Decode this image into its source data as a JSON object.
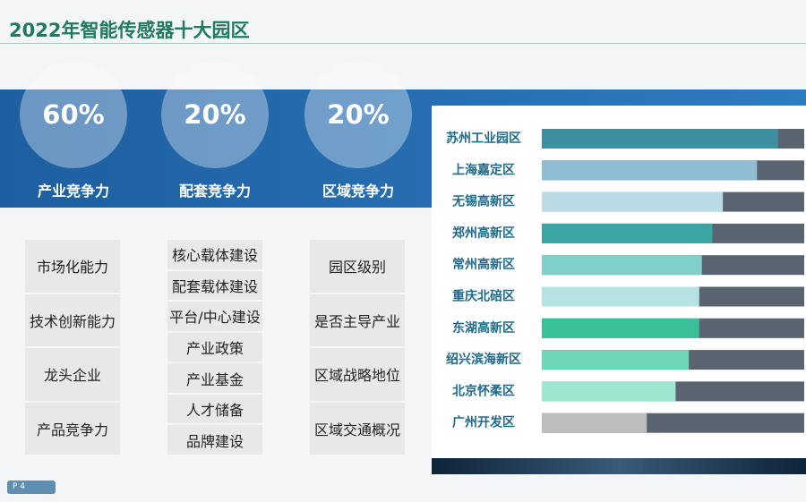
{
  "header": {
    "title": "2022年智能传感器十大园区"
  },
  "pillars": [
    {
      "percent": "60%",
      "label": "产业竞争力",
      "items": [
        "市场化能力",
        "技术创新能力",
        "龙头企业",
        "产品竞争力"
      ]
    },
    {
      "percent": "20%",
      "label": "配套竞争力",
      "items": [
        "核心载体建设",
        "配套载体建设",
        "平台/中心建设",
        "产业政策",
        "产业基金",
        "人才储备",
        "品牌建设"
      ]
    },
    {
      "percent": "20%",
      "label": "区域竞争力",
      "items": [
        "园区级别",
        "是否主导产业",
        "区域战略地位",
        "区域交通概况"
      ]
    }
  ],
  "ranking": {
    "type": "bar",
    "xlim": [
      0,
      100
    ],
    "track_color": "#5a6470",
    "categories": [
      "苏州工业园区",
      "上海嘉定区",
      "无锡高新区",
      "郑州高新区",
      "常州高新区",
      "重庆北碚区",
      "东湖高新区",
      "绍兴滨海新区",
      "北京怀柔区",
      "广州开发区"
    ],
    "values": [
      90,
      82,
      69,
      65,
      61,
      60,
      60,
      56,
      51,
      40
    ],
    "colors": [
      "#3f8fa3",
      "#8fbdd3",
      "#b9dbe6",
      "#3aa6a4",
      "#7fd0c8",
      "#b5e2e3",
      "#3bbf98",
      "#6fd7b8",
      "#9de6d0",
      "#bdbdbd"
    ]
  },
  "footer": {
    "page": "P 4"
  }
}
